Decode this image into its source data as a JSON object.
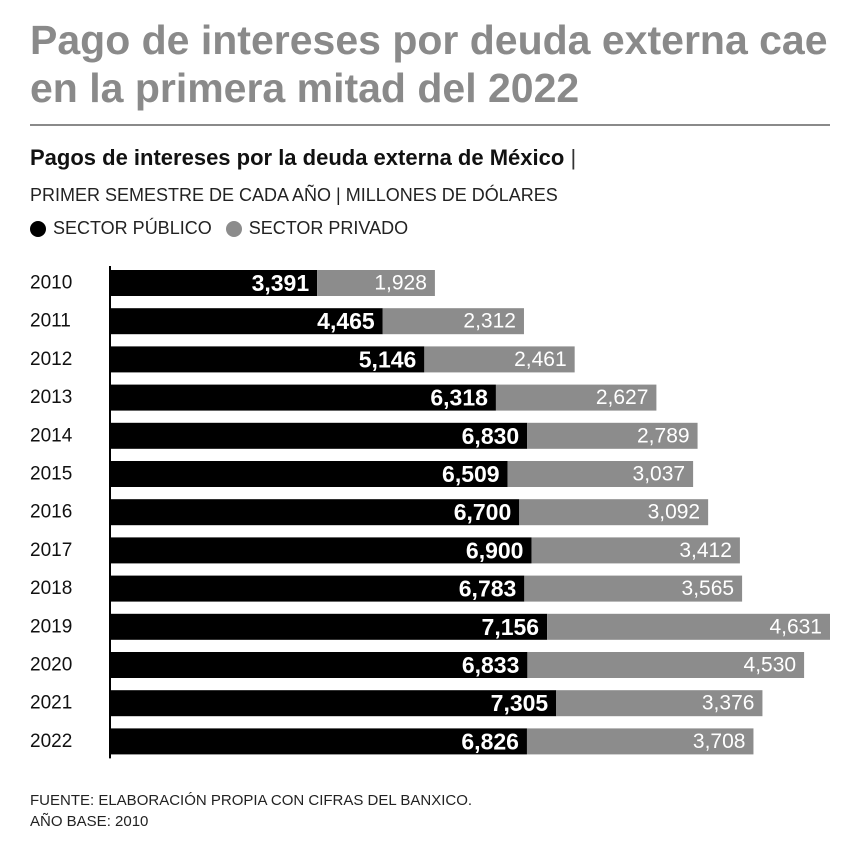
{
  "title": "Pago de intereses por deuda externa cae en la primera mitad del 2022",
  "subtitle": "Pagos de intereses por la deuda externa de México",
  "subtitle_separator": "|",
  "units": "PRIMER SEMESTRE DE CADA AÑO | MILLONES DE DÓLARES",
  "legend": {
    "public": "SECTOR PÚBLICO",
    "private": "SECTOR PRIVADO"
  },
  "footer": {
    "source": "FUENTE: ELABORACIÓN PROPIA CON CIFRAS DEL BANXICO.",
    "base": "AÑO BASE: 2010"
  },
  "colors": {
    "public": "#000000",
    "private": "#8c8c8c",
    "title": "#8a8a8a"
  },
  "chart_data": {
    "type": "bar",
    "orientation": "horizontal",
    "stacked": true,
    "title": "Pagos de intereses por la deuda externa de México",
    "xlabel": "",
    "ylabel": "",
    "grid": false,
    "legend_position": "top",
    "categories": [
      "2010",
      "2011",
      "2012",
      "2013",
      "2014",
      "2015",
      "2016",
      "2017",
      "2018",
      "2019",
      "2020",
      "2021",
      "2022"
    ],
    "series": [
      {
        "name": "SECTOR PÚBLICO",
        "values": [
          3391,
          4465,
          5146,
          6318,
          6830,
          6509,
          6700,
          6900,
          6783,
          7156,
          6833,
          7305,
          6826
        ],
        "labels": [
          "3,391",
          "4,465",
          "5,146",
          "6,318",
          "6,830",
          "6,509",
          "6,700",
          "6,900",
          "6,783",
          "7,156",
          "6,833",
          "7,305",
          "6,826"
        ]
      },
      {
        "name": "SECTOR PRIVADO",
        "values": [
          1928,
          2312,
          2461,
          2627,
          2789,
          3037,
          3092,
          3412,
          3565,
          4631,
          4530,
          3376,
          3708
        ],
        "labels": [
          "1,928",
          "2,312",
          "2,461",
          "2,627",
          "2,789",
          "3,037",
          "3,092",
          "3,412",
          "3,565",
          "4,631",
          "4,530",
          "3,376",
          "3,708"
        ]
      }
    ],
    "xlim": [
      0,
      11787
    ]
  }
}
